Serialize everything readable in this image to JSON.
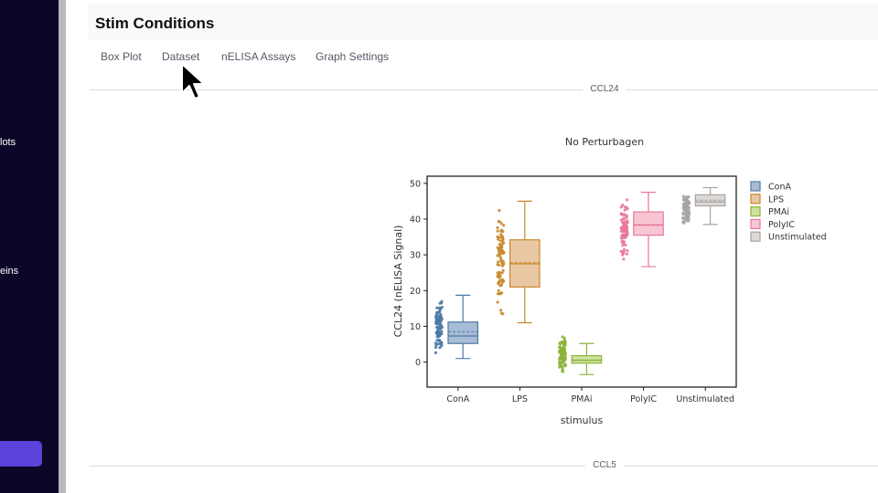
{
  "sidebar": {
    "items": [
      {
        "label": "lots"
      },
      {
        "label": "eins"
      }
    ],
    "button_color": "#5b43d9",
    "background": "#0c0628"
  },
  "page": {
    "title": "Stim Conditions"
  },
  "tabs": [
    {
      "label": "Box Plot"
    },
    {
      "label": "Dataset"
    },
    {
      "label": "nELISA Assays"
    },
    {
      "label": "Graph Settings"
    }
  ],
  "sections": [
    {
      "label": "CCL24"
    },
    {
      "label": "CCL5"
    }
  ],
  "cursor": {
    "icon": "arrow-pointer-icon"
  },
  "chart_data": {
    "type": "box",
    "title": "No Perturbagen",
    "xlabel": "stimulus",
    "ylabel": "CCL24 (nELISA Signal)",
    "categories": [
      "ConA",
      "LPS",
      "PMAi",
      "PolyIC",
      "Unstimulated"
    ],
    "ylim": [
      -7,
      52
    ],
    "yticks": [
      0,
      10,
      20,
      30,
      40,
      50
    ],
    "legend_position": "right",
    "series": [
      {
        "name": "ConA",
        "color": "#4e79a7",
        "fill": "#a8bcd6",
        "min": 1,
        "q1": 5.2,
        "median": 7.3,
        "mean": 8.5,
        "q3": 11.2,
        "max": 18.7,
        "points_min": 1,
        "points_max": 18.5
      },
      {
        "name": "LPS",
        "color": "#c88a2e",
        "fill": "#e8c7a2",
        "min": 11,
        "q1": 21,
        "median": 27.5,
        "mean": 27.8,
        "q3": 34.2,
        "max": 45,
        "points_min": 11.5,
        "points_max": 45
      },
      {
        "name": "PMAi",
        "color": "#8cb43b",
        "fill": "#cfe09f",
        "min": -3.5,
        "q1": -0.3,
        "median": 0.5,
        "mean": 0.6,
        "q3": 1.8,
        "max": 5.2,
        "points_min": -3.5,
        "points_max": 8.5
      },
      {
        "name": "PolyIC",
        "color": "#e8799a",
        "fill": "#f8c6d2",
        "min": 26.7,
        "q1": 35.5,
        "median": 38.3,
        "mean": 38.5,
        "q3": 42,
        "max": 47.5,
        "points_min": 26.7,
        "points_max": 47.5
      },
      {
        "name": "Unstimulated",
        "color": "#a8a4a2",
        "fill": "#ddd9d6",
        "min": 38.5,
        "q1": 43.7,
        "median": 44.8,
        "mean": 45.3,
        "q3": 46.8,
        "max": 48.8,
        "points_min": 36,
        "points_max": 49
      }
    ]
  }
}
